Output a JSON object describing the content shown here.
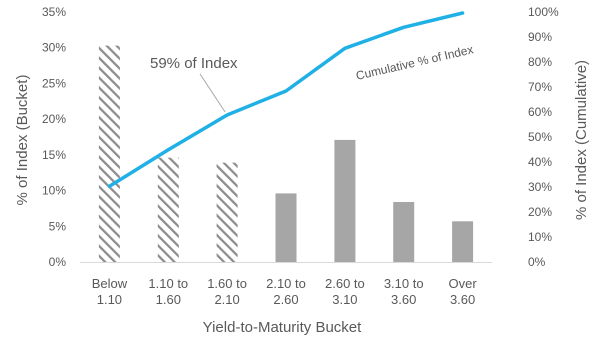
{
  "chart_data": {
    "type": "bar",
    "categories": [
      [
        "Below",
        "1.10"
      ],
      [
        "1.10 to",
        "1.60"
      ],
      [
        "1.60 to",
        "2.10"
      ],
      [
        "2.10 to",
        "2.60"
      ],
      [
        "2.60 to",
        "3.10"
      ],
      [
        "3.10 to",
        "3.60"
      ],
      [
        "Over",
        "3.60"
      ]
    ],
    "bars": {
      "values": [
        30.3,
        14.6,
        13.9,
        9.6,
        17.1,
        8.4,
        5.7
      ],
      "hatched": [
        true,
        true,
        true,
        false,
        false,
        false,
        false
      ]
    },
    "line": {
      "name": "Cumulative % of Index",
      "values": [
        30.3,
        44.9,
        58.8,
        68.4,
        85.5,
        93.9,
        99.6
      ]
    },
    "xlabel": "Yield-to-Maturity Bucket",
    "ylabel_left": "% of Index (Bucket)",
    "ylabel_right": "% of Index (Cumulative)",
    "ylim_left": [
      0,
      35
    ],
    "ylim_right": [
      0,
      100
    ],
    "yticks_left": [
      "0%",
      "5%",
      "10%",
      "15%",
      "20%",
      "25%",
      "30%",
      "35%"
    ],
    "yticks_right": [
      "0%",
      "10%",
      "20%",
      "30%",
      "40%",
      "50%",
      "60%",
      "70%",
      "80%",
      "90%",
      "100%"
    ],
    "annotation": {
      "text": "59% of Index",
      "category_index": 2
    },
    "grid": false,
    "colors": {
      "bar": "#a6a6a6",
      "hatch": "#8c8c8c",
      "line": "#1fb0e6",
      "text": "#595959",
      "axis": "#d9d9d9"
    }
  }
}
